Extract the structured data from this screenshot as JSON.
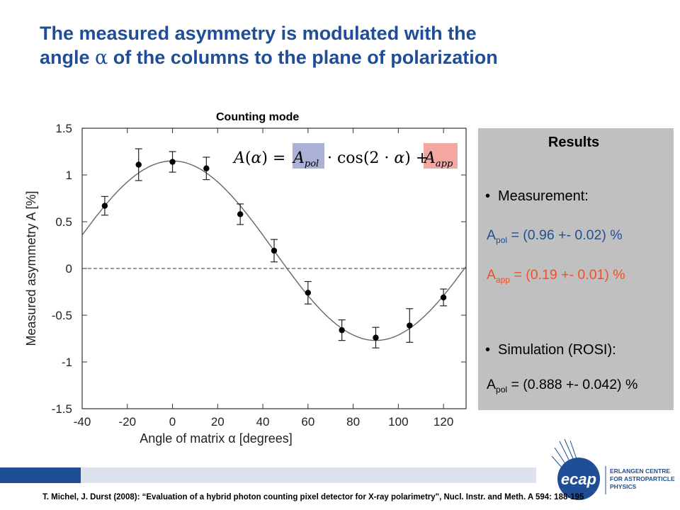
{
  "slide": {
    "title_line1": "The measured asymmetry is modulated with the",
    "title_line2_pre": "angle ",
    "title_symbol": "α",
    "title_line2_post": " of the columns to the plane of polarization",
    "citation": "T. Michel, J. Durst (2008): “Evaluation of a hybrid photon counting pixel detector for X-ray polarimetry\", Nucl. Instr. and Meth. A 594: 188-195"
  },
  "chart_data": {
    "type": "scatter",
    "title": "Counting mode",
    "xlabel": "Angle of matrix α [degrees]",
    "ylabel": "Measured asymmetry A [%]",
    "xlim": [
      -40,
      130
    ],
    "ylim": [
      -1.5,
      1.5
    ],
    "x_ticks": [
      -40,
      -20,
      0,
      20,
      40,
      60,
      80,
      100,
      120
    ],
    "y_ticks": [
      1.5,
      1,
      0.5,
      0,
      -0.5,
      -1,
      -1.5
    ],
    "grid": false,
    "zero_line": "dashed",
    "formula": "A(α) = A_pol · cos(2·α) + A_app",
    "formula_highlight_colors": {
      "A_pol": "#aab0d8",
      "A_app": "#f4a6a0"
    },
    "series": [
      {
        "points": [
          {
            "x": -30,
            "y": 0.67,
            "err": 0.1
          },
          {
            "x": -15,
            "y": 1.11,
            "err": 0.17
          },
          {
            "x": 0,
            "y": 1.14,
            "err": 0.11
          },
          {
            "x": 15,
            "y": 1.07,
            "err": 0.12
          },
          {
            "x": 30,
            "y": 0.58,
            "err": 0.11
          },
          {
            "x": 45,
            "y": 0.19,
            "err": 0.12
          },
          {
            "x": 60,
            "y": -0.26,
            "err": 0.12
          },
          {
            "x": 75,
            "y": -0.66,
            "err": 0.11
          },
          {
            "x": 90,
            "y": -0.74,
            "err": 0.11
          },
          {
            "x": 105,
            "y": -0.61,
            "err": 0.18
          },
          {
            "x": 120,
            "y": -0.31,
            "err": 0.09
          }
        ]
      }
    ],
    "fit": {
      "A_pol": 0.96,
      "A_app": 0.19
    }
  },
  "results": {
    "heading": "Results",
    "measurement_label": "Measurement:",
    "apol_sym": "A",
    "apol_sub": "pol",
    "apol_value": " = (0.96 +- 0.02) %",
    "aapp_sym": "A",
    "aapp_sub": "app",
    "aapp_value": " = (0.19 +- 0.01) %",
    "simulation_label": "Simulation (ROSI):",
    "sim_sym": "A",
    "sim_sub": "pol",
    "sim_value": " = (0.888 +- 0.042) %",
    "colors": {
      "panel": "#c0c0c0",
      "apol": "#1f4e96",
      "aapp": "#f05023"
    }
  },
  "logo": {
    "mark": "ecap",
    "text_line1": "ERLANGEN CENTRE",
    "text_line2": "FOR ASTROPARTICLE",
    "text_line3": "PHYSICS"
  }
}
